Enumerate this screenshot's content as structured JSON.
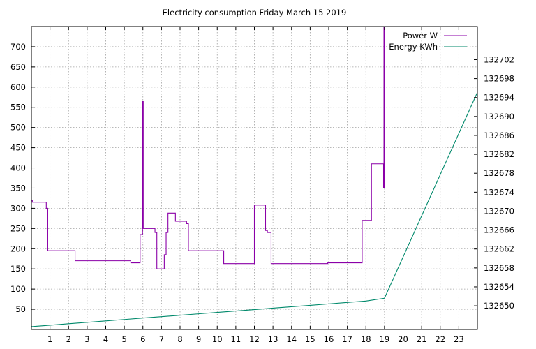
{
  "chart_data": {
    "type": "line",
    "title": "Electricity consumption Friday March 15 2019",
    "xlabel": "",
    "ylabel": "",
    "y2label": "",
    "xlim": [
      0,
      24
    ],
    "ylim": [
      0,
      750
    ],
    "y2lim": [
      132645,
      132709
    ],
    "x_ticks": [
      1,
      2,
      3,
      4,
      5,
      6,
      7,
      8,
      9,
      10,
      11,
      12,
      13,
      14,
      15,
      16,
      17,
      18,
      19,
      20,
      21,
      22,
      23
    ],
    "y_ticks": [
      50,
      100,
      150,
      200,
      250,
      300,
      350,
      400,
      450,
      500,
      550,
      600,
      650,
      700
    ],
    "y2_ticks": [
      132650,
      132654,
      132658,
      132662,
      132666,
      132670,
      132674,
      132678,
      132682,
      132686,
      132690,
      132694,
      132698,
      132702
    ],
    "grid": true,
    "legend_position": "top-right",
    "colors": {
      "power": "#8b00a8",
      "energy": "#00896b"
    },
    "series": [
      {
        "name": "Power W",
        "axis": "left",
        "step": true,
        "points": [
          [
            0.0,
            320
          ],
          [
            0.05,
            315
          ],
          [
            0.8,
            300
          ],
          [
            0.88,
            195
          ],
          [
            2.35,
            170
          ],
          [
            5.35,
            165
          ],
          [
            5.85,
            235
          ],
          [
            5.98,
            565
          ],
          [
            6.02,
            250
          ],
          [
            6.65,
            240
          ],
          [
            6.75,
            150
          ],
          [
            7.15,
            185
          ],
          [
            7.25,
            240
          ],
          [
            7.35,
            288
          ],
          [
            7.75,
            268
          ],
          [
            8.35,
            262
          ],
          [
            8.45,
            195
          ],
          [
            10.35,
            163
          ],
          [
            12.0,
            308
          ],
          [
            12.6,
            245
          ],
          [
            12.7,
            240
          ],
          [
            12.9,
            163
          ],
          [
            15.95,
            165
          ],
          [
            17.8,
            270
          ],
          [
            18.3,
            410
          ],
          [
            18.95,
            350
          ],
          [
            18.97,
            750
          ],
          [
            19.01,
            350
          ]
        ]
      },
      {
        "name": "Energy KWh",
        "axis": "right",
        "step": false,
        "points": [
          [
            0,
            132645.6
          ],
          [
            1,
            132645.9
          ],
          [
            2,
            132646.2
          ],
          [
            3,
            132646.5
          ],
          [
            4,
            132646.8
          ],
          [
            5,
            132647.1
          ],
          [
            6,
            132647.4
          ],
          [
            7,
            132647.7
          ],
          [
            8,
            132648.0
          ],
          [
            9,
            132648.3
          ],
          [
            10,
            132648.6
          ],
          [
            11,
            132648.9
          ],
          [
            12,
            132649.2
          ],
          [
            13,
            132649.5
          ],
          [
            14,
            132649.8
          ],
          [
            15,
            132650.1
          ],
          [
            16,
            132650.4
          ],
          [
            17,
            132650.7
          ],
          [
            18,
            132651.0
          ],
          [
            19,
            132651.6
          ],
          [
            24,
            132695.1
          ]
        ]
      }
    ]
  }
}
